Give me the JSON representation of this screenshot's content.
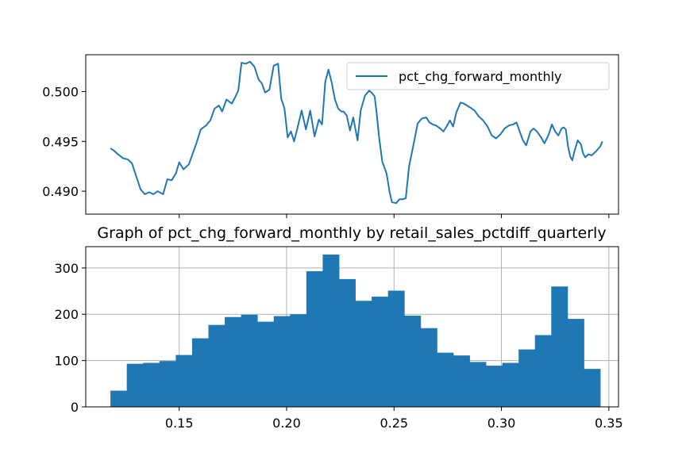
{
  "chart_data": [
    {
      "type": "line",
      "title": "",
      "xlabel": "",
      "ylabel": "",
      "legend": {
        "entries": [
          "pct_chg_forward_monthly"
        ],
        "placement": "upper-right"
      },
      "grid": false,
      "x_tick_labels": [],
      "y_ticks": [
        0.49,
        0.495,
        0.5
      ],
      "y_tick_labels": [
        "0.490",
        "0.495",
        "0.500"
      ],
      "ylim": [
        0.4877,
        0.5037
      ],
      "series": [
        {
          "name": "pct_chg_forward_monthly",
          "color": "#1f77b4",
          "points": [
            [
              0.118,
              0.4943
            ],
            [
              0.1195,
              0.4941
            ],
            [
              0.1215,
              0.4937
            ],
            [
              0.124,
              0.4933
            ],
            [
              0.126,
              0.4932
            ],
            [
              0.128,
              0.4928
            ],
            [
              0.13,
              0.4915
            ],
            [
              0.132,
              0.4902
            ],
            [
              0.134,
              0.4897
            ],
            [
              0.136,
              0.4899
            ],
            [
              0.138,
              0.4897
            ],
            [
              0.14,
              0.49
            ],
            [
              0.1425,
              0.4897
            ],
            [
              0.1445,
              0.4912
            ],
            [
              0.1465,
              0.4911
            ],
            [
              0.1485,
              0.4918
            ],
            [
              0.15,
              0.4929
            ],
            [
              0.152,
              0.4922
            ],
            [
              0.1545,
              0.4927
            ],
            [
              0.156,
              0.4936
            ],
            [
              0.158,
              0.4948
            ],
            [
              0.16,
              0.4962
            ],
            [
              0.1625,
              0.4966
            ],
            [
              0.1645,
              0.4971
            ],
            [
              0.1665,
              0.4983
            ],
            [
              0.1685,
              0.4986
            ],
            [
              0.17,
              0.498
            ],
            [
              0.172,
              0.4992
            ],
            [
              0.1745,
              0.4988
            ],
            [
              0.176,
              0.4994
            ],
            [
              0.1775,
              0.5001
            ],
            [
              0.179,
              0.5029
            ],
            [
              0.181,
              0.5028
            ],
            [
              0.183,
              0.503
            ],
            [
              0.185,
              0.5025
            ],
            [
              0.187,
              0.5012
            ],
            [
              0.1885,
              0.5008
            ],
            [
              0.19,
              0.4999
            ],
            [
              0.192,
              0.5002
            ],
            [
              0.194,
              0.5026
            ],
            [
              0.196,
              0.5028
            ],
            [
              0.1975,
              0.4993
            ],
            [
              0.199,
              0.4983
            ],
            [
              0.2005,
              0.4954
            ],
            [
              0.202,
              0.496
            ],
            [
              0.2035,
              0.495
            ],
            [
              0.205,
              0.4963
            ],
            [
              0.207,
              0.4981
            ],
            [
              0.209,
              0.4962
            ],
            [
              0.211,
              0.4981
            ],
            [
              0.213,
              0.4955
            ],
            [
              0.215,
              0.4972
            ],
            [
              0.2165,
              0.4967
            ],
            [
              0.218,
              0.501
            ],
            [
              0.2195,
              0.5022
            ],
            [
              0.221,
              0.5009
            ],
            [
              0.2225,
              0.4992
            ],
            [
              0.224,
              0.4983
            ],
            [
              0.2255,
              0.498
            ],
            [
              0.2265,
              0.498
            ],
            [
              0.228,
              0.4976
            ],
            [
              0.2295,
              0.4961
            ],
            [
              0.231,
              0.4974
            ],
            [
              0.233,
              0.4951
            ],
            [
              0.2345,
              0.4981
            ],
            [
              0.2365,
              0.4996
            ],
            [
              0.2385,
              0.5001
            ],
            [
              0.24,
              0.4998
            ],
            [
              0.241,
              0.4995
            ],
            [
              0.242,
              0.4977
            ],
            [
              0.243,
              0.4955
            ],
            [
              0.2445,
              0.493
            ],
            [
              0.2465,
              0.4918
            ],
            [
              0.248,
              0.4899
            ],
            [
              0.249,
              0.4889
            ],
            [
              0.251,
              0.4888
            ],
            [
              0.2525,
              0.4892
            ],
            [
              0.254,
              0.4892
            ],
            [
              0.2555,
              0.4893
            ],
            [
              0.257,
              0.4925
            ],
            [
              0.259,
              0.4946
            ],
            [
              0.261,
              0.4968
            ],
            [
              0.263,
              0.4973
            ],
            [
              0.265,
              0.4974
            ],
            [
              0.2665,
              0.4969
            ],
            [
              0.268,
              0.4967
            ],
            [
              0.2695,
              0.4966
            ],
            [
              0.2715,
              0.4963
            ],
            [
              0.273,
              0.496
            ],
            [
              0.2745,
              0.4965
            ],
            [
              0.276,
              0.4971
            ],
            [
              0.2775,
              0.4965
            ],
            [
              0.279,
              0.4979
            ],
            [
              0.281,
              0.4989
            ],
            [
              0.2825,
              0.4988
            ],
            [
              0.284,
              0.4986
            ],
            [
              0.2855,
              0.4984
            ],
            [
              0.2875,
              0.4981
            ],
            [
              0.2895,
              0.4975
            ],
            [
              0.2915,
              0.4971
            ],
            [
              0.2935,
              0.4965
            ],
            [
              0.2955,
              0.4956
            ],
            [
              0.2975,
              0.4953
            ],
            [
              0.2995,
              0.4957
            ],
            [
              0.3015,
              0.4963
            ],
            [
              0.3035,
              0.4966
            ],
            [
              0.3055,
              0.4967
            ],
            [
              0.307,
              0.4969
            ],
            [
              0.3085,
              0.496
            ],
            [
              0.31,
              0.4951
            ],
            [
              0.3115,
              0.4946
            ],
            [
              0.3135,
              0.496
            ],
            [
              0.315,
              0.4963
            ],
            [
              0.3165,
              0.496
            ],
            [
              0.3185,
              0.4954
            ],
            [
              0.32,
              0.4948
            ],
            [
              0.322,
              0.4957
            ],
            [
              0.3235,
              0.4967
            ],
            [
              0.325,
              0.496
            ],
            [
              0.3265,
              0.4956
            ],
            [
              0.328,
              0.4963
            ],
            [
              0.329,
              0.4964
            ],
            [
              0.33,
              0.4962
            ],
            [
              0.331,
              0.4945
            ],
            [
              0.332,
              0.4935
            ],
            [
              0.333,
              0.4931
            ],
            [
              0.334,
              0.494
            ],
            [
              0.3355,
              0.4951
            ],
            [
              0.337,
              0.4947
            ],
            [
              0.338,
              0.4938
            ],
            [
              0.339,
              0.4934
            ],
            [
              0.3405,
              0.4937
            ],
            [
              0.342,
              0.4936
            ],
            [
              0.344,
              0.494
            ],
            [
              0.346,
              0.4945
            ],
            [
              0.347,
              0.495
            ]
          ]
        }
      ]
    },
    {
      "type": "bar",
      "title": "Graph of pct_chg_forward_monthly by retail_sales_pctdiff_quarterly",
      "xlabel": "",
      "ylabel": "",
      "grid": true,
      "color": "#1f77b4",
      "x_ticks": [
        0.15,
        0.2,
        0.25,
        0.3,
        0.35
      ],
      "x_tick_labels": [
        "0.15",
        "0.20",
        "0.25",
        "0.30",
        "0.35"
      ],
      "xlim": [
        0.1065,
        0.3545
      ],
      "y_ticks": [
        0,
        100,
        200,
        300
      ],
      "y_tick_labels": [
        "0",
        "100",
        "200",
        "300"
      ],
      "ylim": [
        0,
        346
      ],
      "bin_edges": [
        0.118,
        0.1256,
        0.1332,
        0.1408,
        0.1484,
        0.156,
        0.1636,
        0.1712,
        0.1788,
        0.1864,
        0.194,
        0.2016,
        0.2092,
        0.2168,
        0.2244,
        0.232,
        0.2396,
        0.2472,
        0.2548,
        0.2624,
        0.27,
        0.2776,
        0.2852,
        0.2928,
        0.3004,
        0.308,
        0.3156,
        0.3232,
        0.3308,
        0.3384,
        0.346
      ],
      "counts": [
        35,
        93,
        95,
        99,
        112,
        148,
        177,
        194,
        199,
        184,
        196,
        200,
        293,
        329,
        276,
        229,
        238,
        251,
        197,
        170,
        117,
        111,
        97,
        89,
        95,
        124,
        155,
        260,
        190,
        82
      ]
    }
  ]
}
